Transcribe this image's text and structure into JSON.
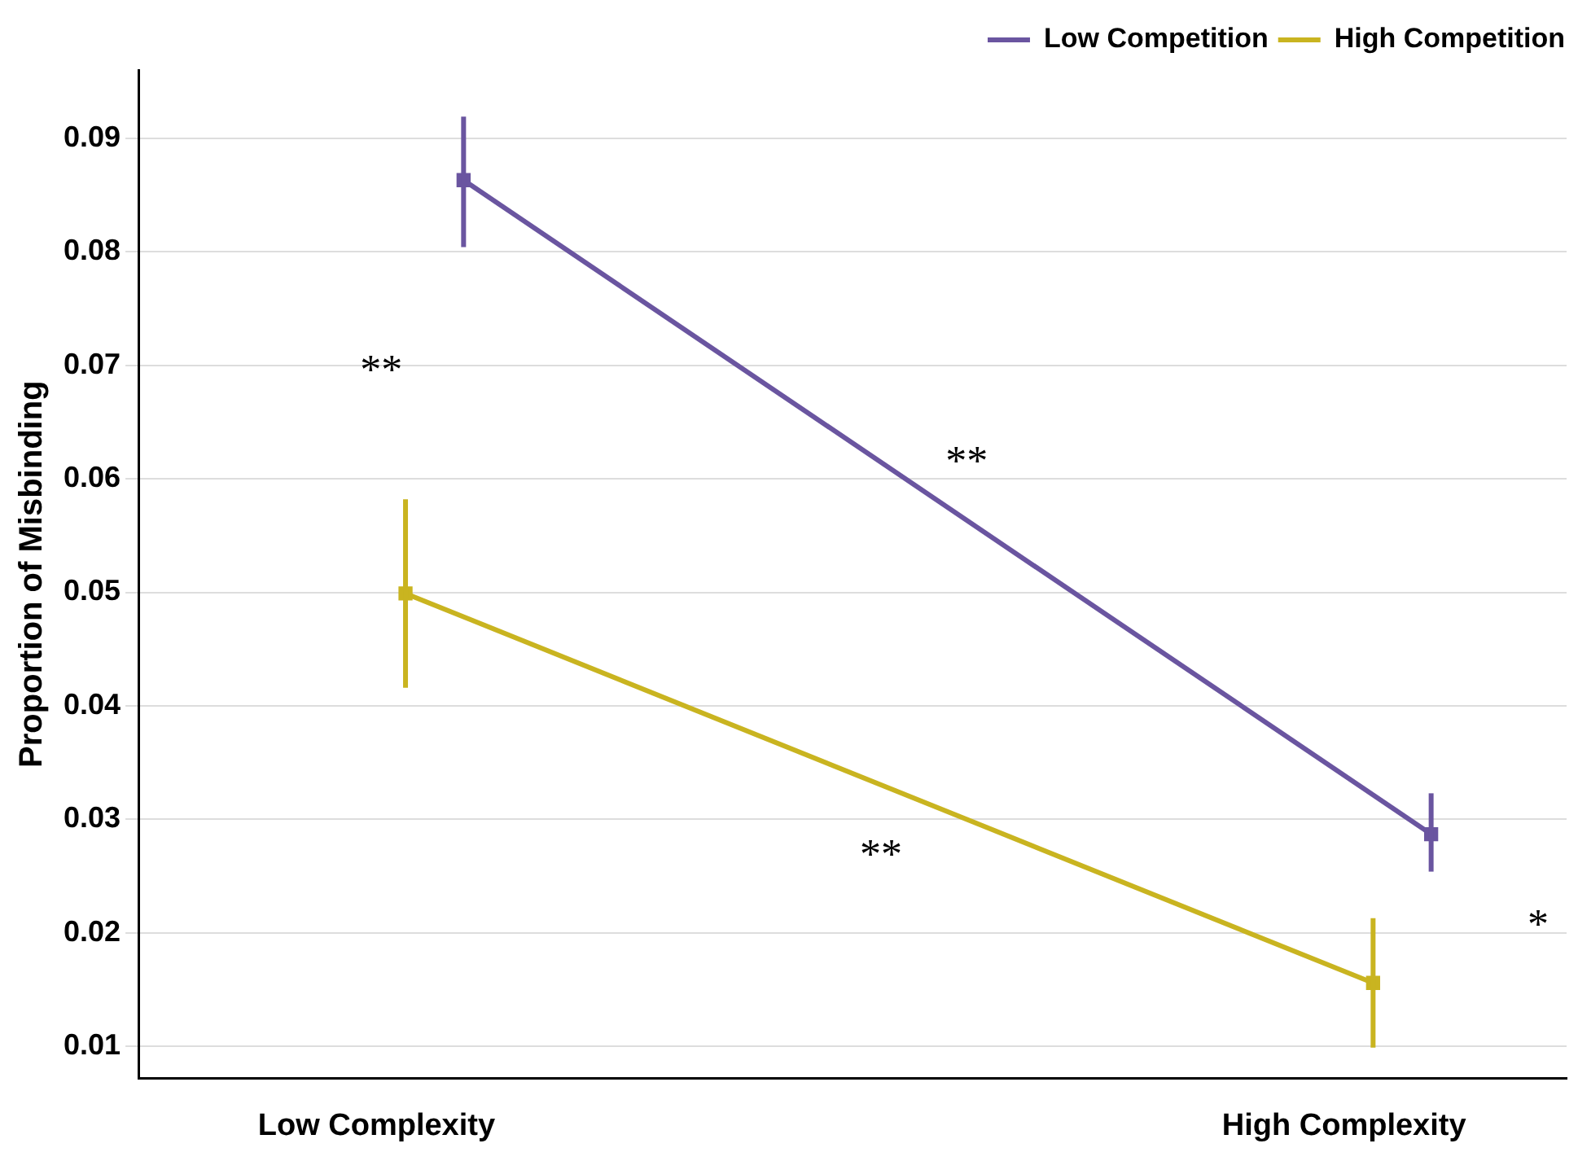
{
  "chart_data": {
    "type": "line",
    "ylabel": "Proportion of Misbinding",
    "categories": [
      "Low Complexity",
      "High Complexity"
    ],
    "series": [
      {
        "name": "Low Competition",
        "color": "#6a55a0",
        "values": [
          0.0863,
          0.0287
        ],
        "errors": [
          [
            0.0804,
            0.0919
          ],
          [
            0.0254,
            0.0323
          ]
        ]
      },
      {
        "name": "High Competition",
        "color": "#c9b420",
        "values": [
          0.0499,
          0.0156
        ],
        "errors": [
          [
            0.0416,
            0.0582
          ],
          [
            0.0099,
            0.0213
          ]
        ]
      }
    ],
    "ylim": [
      0.0072,
      0.096
    ],
    "yticks": [
      0.01,
      0.02,
      0.03,
      0.04,
      0.05,
      0.06,
      0.07,
      0.08,
      0.09
    ],
    "grid": "y",
    "legend": "top right",
    "marker": "square",
    "line_style": "solid",
    "annotations": [
      "**",
      "**",
      "**",
      "*"
    ]
  }
}
